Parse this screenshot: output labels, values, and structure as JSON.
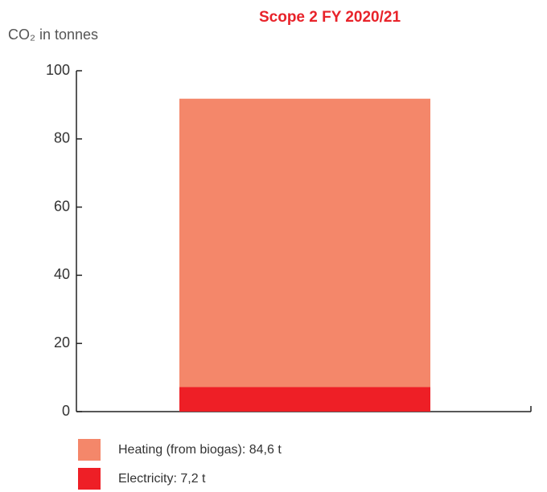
{
  "chart_data": {
    "type": "stacked_bar",
    "title": "Scope 2 FY 2020/21",
    "y_label": "CO₂ in tonnes",
    "categories": [
      null
    ],
    "series": [
      {
        "name": "Heating (from biogas): 84,6 t",
        "color": "#f4876a",
        "values": [
          84.6
        ]
      },
      {
        "name": "Electricity: 7,2 t",
        "color": "#ee1f26",
        "values": [
          7.2
        ]
      }
    ],
    "ylim": [
      0,
      100
    ],
    "yticks": [
      0,
      20,
      40,
      60,
      80,
      100
    ],
    "grid": false
  }
}
